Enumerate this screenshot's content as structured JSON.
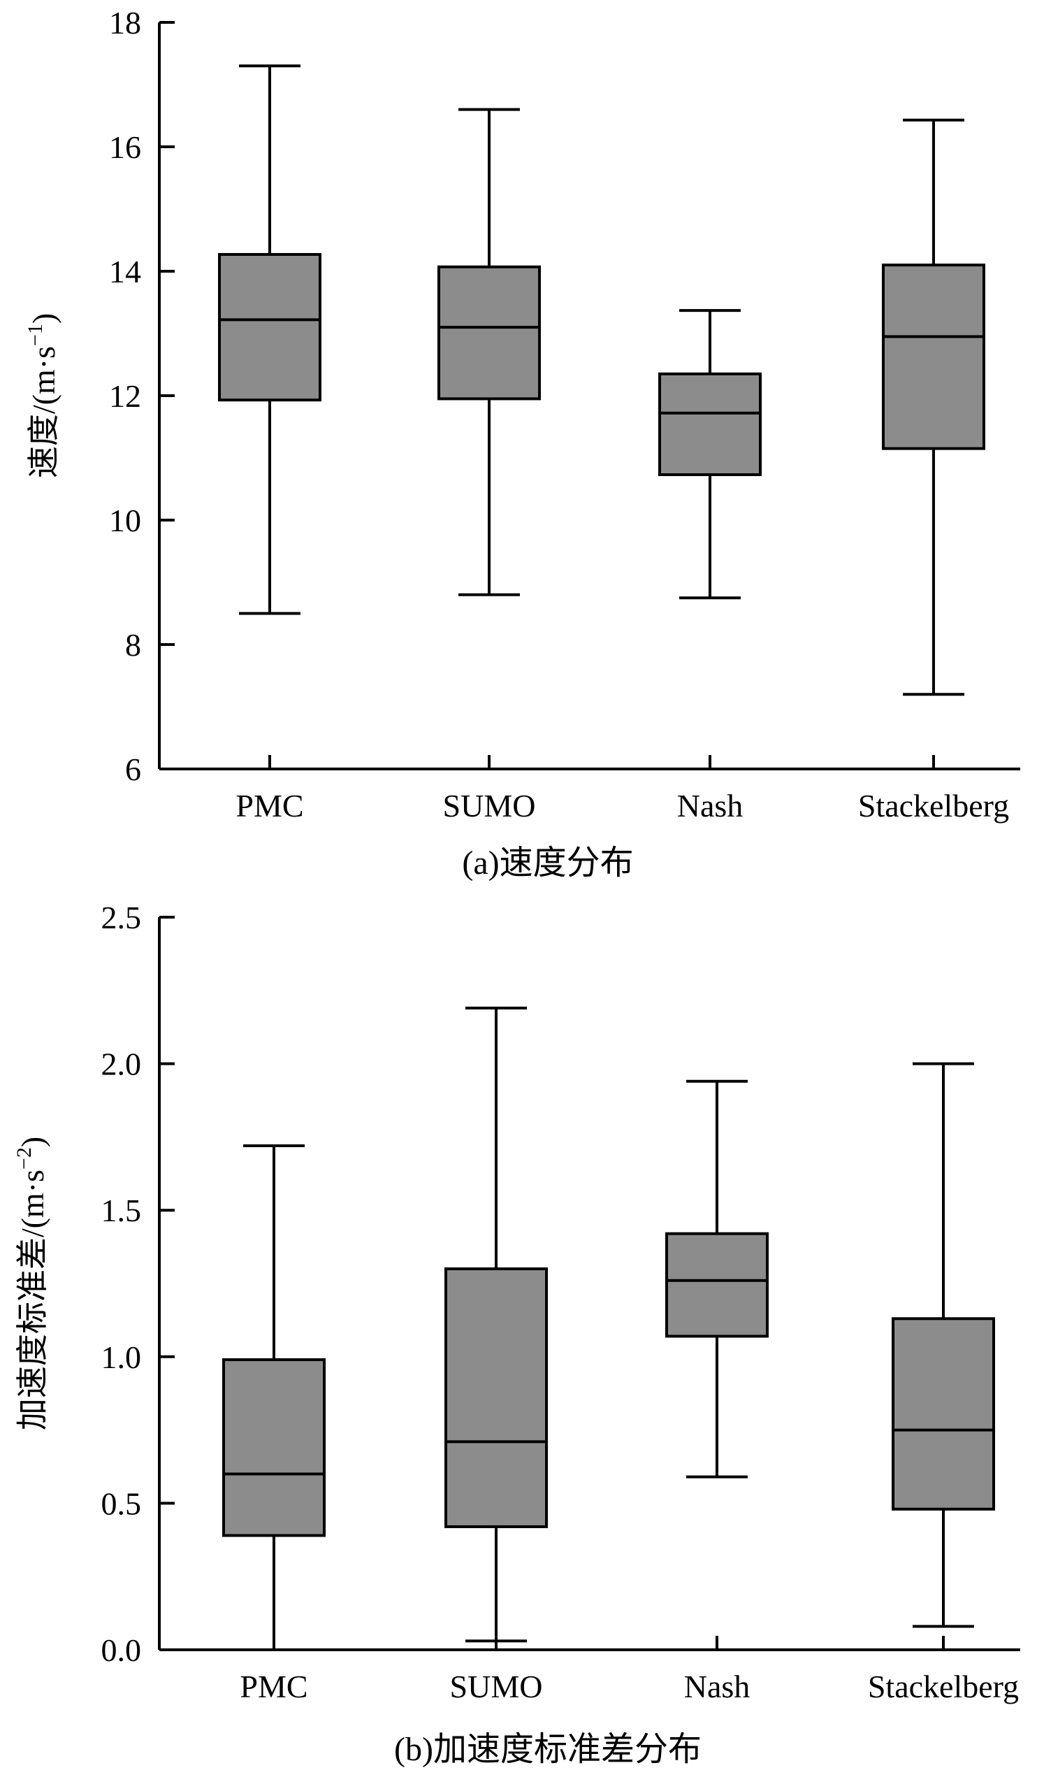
{
  "chart_data": [
    {
      "type": "box",
      "caption": "(a)速度分布",
      "ylabel": "速度/(m·s",
      "ylabel_exp": "−1",
      "ylabel_close": ")",
      "ylim": [
        6,
        18
      ],
      "yticks": [
        "6",
        "8",
        "10",
        "12",
        "14",
        "16",
        "18"
      ],
      "ytick_values": [
        6,
        8,
        10,
        12,
        14,
        16,
        18
      ],
      "categories": [
        "PMC",
        "SUMO",
        "Nash",
        "Stackelberg"
      ],
      "box_color": "#8c8c8c",
      "boxes": [
        {
          "name": "PMC",
          "min": 8.5,
          "q1": 11.93,
          "median": 13.22,
          "q3": 14.27,
          "max": 17.3
        },
        {
          "name": "SUMO",
          "min": 8.8,
          "q1": 11.95,
          "median": 13.1,
          "q3": 14.07,
          "max": 16.6
        },
        {
          "name": "Nash",
          "min": 8.75,
          "q1": 10.73,
          "median": 11.72,
          "q3": 12.35,
          "max": 13.37
        },
        {
          "name": "Stackelberg",
          "min": 7.2,
          "q1": 11.15,
          "median": 12.95,
          "q3": 14.1,
          "max": 16.43
        }
      ]
    },
    {
      "type": "box",
      "caption": "(b)加速度标准差分布",
      "ylabel": "加速度标准差/(m·s",
      "ylabel_exp": "−2",
      "ylabel_close": ")",
      "ylim": [
        0,
        2.5
      ],
      "yticks": [
        "0.0",
        "0.5",
        "1.0",
        "1.5",
        "2.0",
        "2.5"
      ],
      "ytick_values": [
        0,
        0.5,
        1.0,
        1.5,
        2.0,
        2.5
      ],
      "categories": [
        "PMC",
        "SUMO",
        "Nash",
        "Stackelberg"
      ],
      "box_color": "#8c8c8c",
      "boxes": [
        {
          "name": "PMC",
          "min": 0.0,
          "q1": 0.39,
          "median": 0.6,
          "q3": 0.99,
          "max": 1.72
        },
        {
          "name": "SUMO",
          "min": 0.03,
          "q1": 0.42,
          "median": 0.71,
          "q3": 1.3,
          "max": 2.19
        },
        {
          "name": "Nash",
          "min": 0.59,
          "q1": 1.07,
          "median": 1.26,
          "q3": 1.42,
          "max": 1.94
        },
        {
          "name": "Stackelberg",
          "min": 0.08,
          "q1": 0.48,
          "median": 0.75,
          "q3": 1.13,
          "max": 2.0
        }
      ]
    }
  ]
}
